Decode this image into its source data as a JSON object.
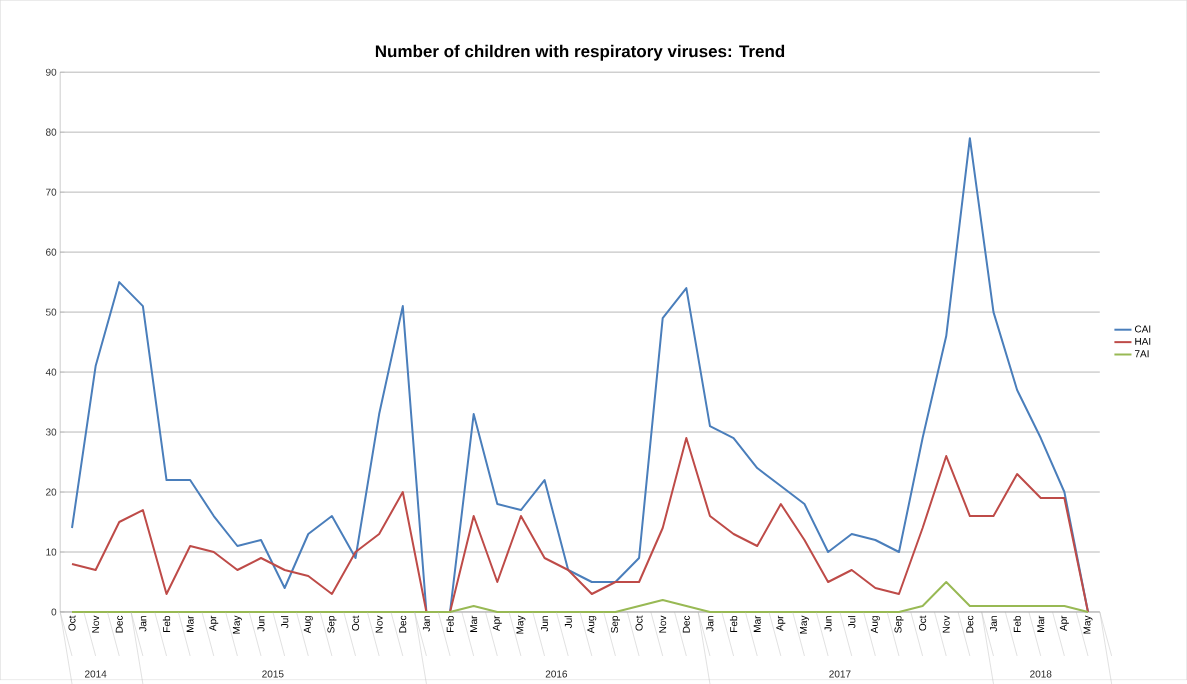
{
  "chart_data": {
    "type": "line",
    "title": "Number of children with respiratory viruses: Trend",
    "categories": [
      "Oct",
      "Nov",
      "Dec",
      "Jan",
      "Feb",
      "Mar",
      "Apr",
      "May",
      "Jun",
      "Jul",
      "Aug",
      "Sep",
      "Oct",
      "Nov",
      "Dec",
      "Jan",
      "Feb",
      "Mar",
      "Apr",
      "May",
      "Jun",
      "Jul",
      "Aug",
      "Sep",
      "Oct",
      "Nov",
      "Dec",
      "Jan",
      "Feb",
      "Mar",
      "Apr",
      "May",
      "Jun",
      "Jul",
      "Aug",
      "Sep",
      "Oct",
      "Nov",
      "Dec",
      "Jan",
      "Feb",
      "Mar",
      "Apr",
      "May"
    ],
    "series": [
      {
        "name": "CAI",
        "color": "#4a7ebb",
        "values": [
          14,
          41,
          55,
          51,
          22,
          22,
          16,
          11,
          12,
          4,
          13,
          16,
          9,
          33,
          51,
          0,
          0,
          33,
          18,
          17,
          22,
          7,
          5,
          5,
          9,
          49,
          54,
          31,
          29,
          24,
          21,
          18,
          10,
          13,
          12,
          10,
          29,
          46,
          79,
          50,
          37,
          29,
          20,
          0
        ]
      },
      {
        "name": "HAI",
        "color": "#be4b48",
        "values": [
          8,
          7,
          15,
          17,
          3,
          11,
          10,
          7,
          9,
          7,
          6,
          3,
          10,
          13,
          20,
          0,
          0,
          16,
          5,
          16,
          9,
          7,
          3,
          5,
          5,
          14,
          29,
          16,
          13,
          11,
          18,
          12,
          5,
          7,
          4,
          3,
          14,
          26,
          16,
          16,
          23,
          19,
          19,
          0
        ]
      },
      {
        "name": "7AI",
        "color": "#98b954",
        "values": [
          0,
          0,
          0,
          0,
          0,
          0,
          0,
          0,
          0,
          0,
          0,
          0,
          0,
          0,
          0,
          0,
          0,
          1,
          0,
          0,
          0,
          0,
          0,
          0,
          1,
          2,
          1,
          0,
          0,
          0,
          0,
          0,
          0,
          0,
          0,
          0,
          1,
          5,
          1,
          1,
          1,
          1,
          1,
          0
        ]
      }
    ],
    "ylim": [
      0,
      90
    ],
    "yticks": [
      0,
      10,
      20,
      30,
      40,
      50,
      60,
      70,
      80,
      90
    ],
    "grid": "y",
    "legend": "right",
    "marker": "none",
    "line_style": "solid",
    "annotations": [
      "2014",
      "2015",
      "2016",
      "2017",
      "2018"
    ]
  }
}
